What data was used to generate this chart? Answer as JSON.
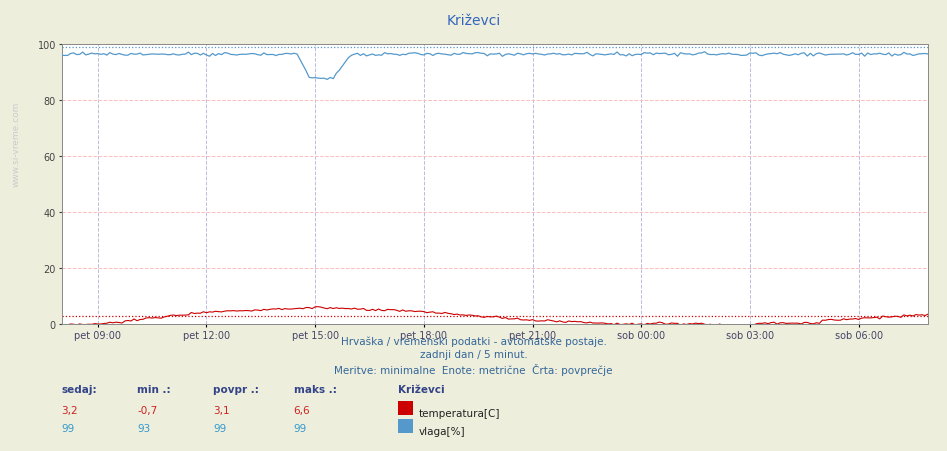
{
  "title": "Križevci",
  "bg_color": "#eeeedd",
  "plot_bg_color": "#ffffff",
  "grid_color_h": "#ffbbbb",
  "grid_color_v": "#bbbbdd",
  "temp_color": "#cc0000",
  "humidity_color": "#5599cc",
  "ylim": [
    0,
    100
  ],
  "yticks": [
    0,
    20,
    40,
    60,
    80,
    100
  ],
  "temp_avg": 3.1,
  "hum_avg": 99.0,
  "n_points": 288,
  "xtick_labels": [
    "pet 09:00",
    "pet 12:00",
    "pet 15:00",
    "pet 18:00",
    "pet 21:00",
    "sob 00:00",
    "sob 03:00",
    "sob 06:00"
  ],
  "xtick_positions": [
    12,
    48,
    84,
    120,
    156,
    192,
    228,
    264
  ],
  "subtitle1": "Hrvaška / vremenski podatki - avtomatske postaje.",
  "subtitle2": "zadnji dan / 5 minut.",
  "subtitle3": "Meritve: minimalne  Enote: metrične  Črta: povprečje",
  "footer_label1": "sedaj:",
  "footer_label2": "min .:",
  "footer_label3": "povpr .:",
  "footer_label4": "maks .:",
  "footer_val_sedaj_temp": "3,2",
  "footer_val_min_temp": "-0,7",
  "footer_val_povpr_temp": "3,1",
  "footer_val_maks_temp": "6,6",
  "footer_val_sedaj_hum": "99",
  "footer_val_min_hum": "93",
  "footer_val_povpr_hum": "99",
  "footer_val_maks_hum": "99",
  "legend_title": "Križevci",
  "legend_temp": "temperatura[C]",
  "legend_hum": "vlaga[%]"
}
